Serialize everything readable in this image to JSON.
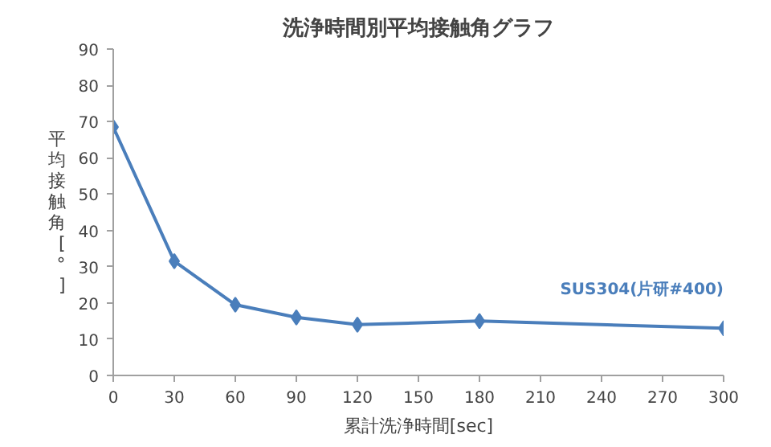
{
  "chart_data": {
    "type": "line",
    "title": "洗浄時間別平均接触角グラフ",
    "xlabel": "累計洗浄時間[sec]",
    "ylabel": "平均接触角[°]",
    "x": [
      0,
      30,
      60,
      90,
      120,
      180,
      300
    ],
    "series": [
      {
        "name": "SUS304(片研#400)",
        "color": "#4a7ebb",
        "values": [
          68.5,
          31.5,
          19.5,
          16,
          14,
          15,
          13
        ]
      }
    ],
    "xlim": [
      0,
      300
    ],
    "xticks": [
      0,
      30,
      60,
      90,
      120,
      150,
      180,
      210,
      240,
      270,
      300
    ],
    "ylim": [
      0,
      90
    ],
    "yticks": [
      0,
      10,
      20,
      30,
      40,
      50,
      60,
      70,
      80,
      90
    ],
    "marker": "diamond",
    "grid": false
  }
}
